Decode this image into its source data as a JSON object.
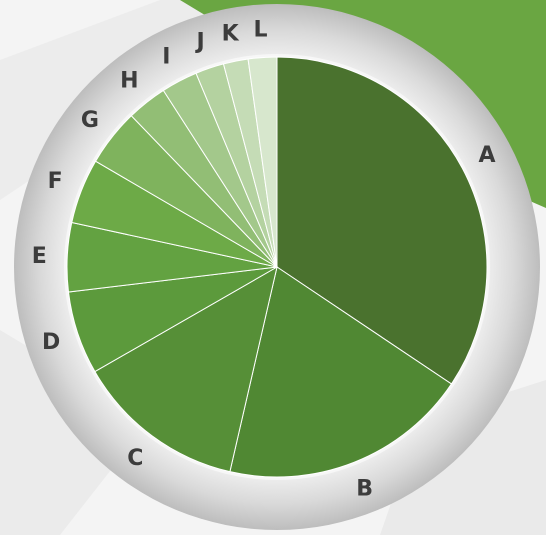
{
  "chart_data": {
    "type": "pie",
    "categories": [
      "A",
      "B",
      "C",
      "D",
      "E",
      "F",
      "G",
      "H",
      "I",
      "J",
      "K",
      "L"
    ],
    "values": [
      34.4,
      19.2,
      13.1,
      6.4,
      5.3,
      5,
      4.4,
      3.1,
      2.8,
      2.2,
      1.9,
      2.2
    ],
    "colors": [
      "#4a722e",
      "#508833",
      "#568f37",
      "#5c9a3c",
      "#63a241",
      "#6daa47",
      "#7fb35d",
      "#92be75",
      "#a3c88b",
      "#b4d2a0",
      "#c5dcb6",
      "#d7e7cd"
    ]
  }
}
